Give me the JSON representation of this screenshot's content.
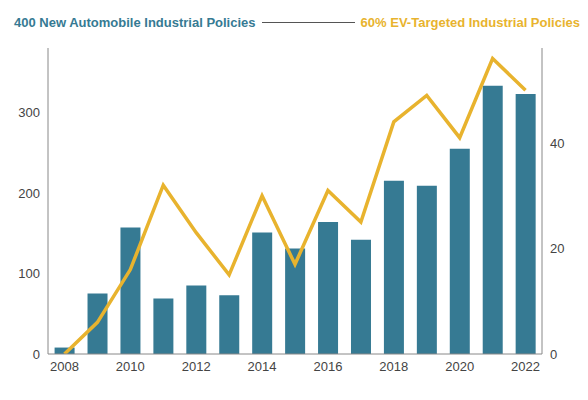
{
  "chart_data": {
    "type": "bar",
    "categories": [
      "2008",
      null,
      "2010",
      null,
      "2012",
      null,
      "2014",
      null,
      "2016",
      null,
      "2018",
      null,
      "2020",
      null,
      "2022"
    ],
    "series": [
      {
        "name": "400 New Automobile Industrial Policies",
        "type": "bar",
        "color": "#367a93",
        "values": [
          8,
          75,
          157,
          69,
          85,
          73,
          151,
          131,
          164,
          142,
          215,
          209,
          255,
          333,
          323
        ]
      },
      {
        "name": "60% EV-Targeted Industrial Policies",
        "type": "line",
        "color": "#e8b32e",
        "axis": "y2",
        "line_style": "solid",
        "marker": "none",
        "values": [
          0,
          6,
          16,
          32,
          23,
          15,
          30,
          17,
          31,
          25,
          44,
          49,
          41,
          56,
          50
        ]
      }
    ],
    "ylim": [
      0,
      380
    ],
    "yticks": [
      0,
      100,
      200,
      300
    ],
    "y2lim": [
      0,
      58
    ],
    "y2ticks": [
      0,
      20,
      40
    ],
    "grid": false,
    "legend": "top"
  }
}
